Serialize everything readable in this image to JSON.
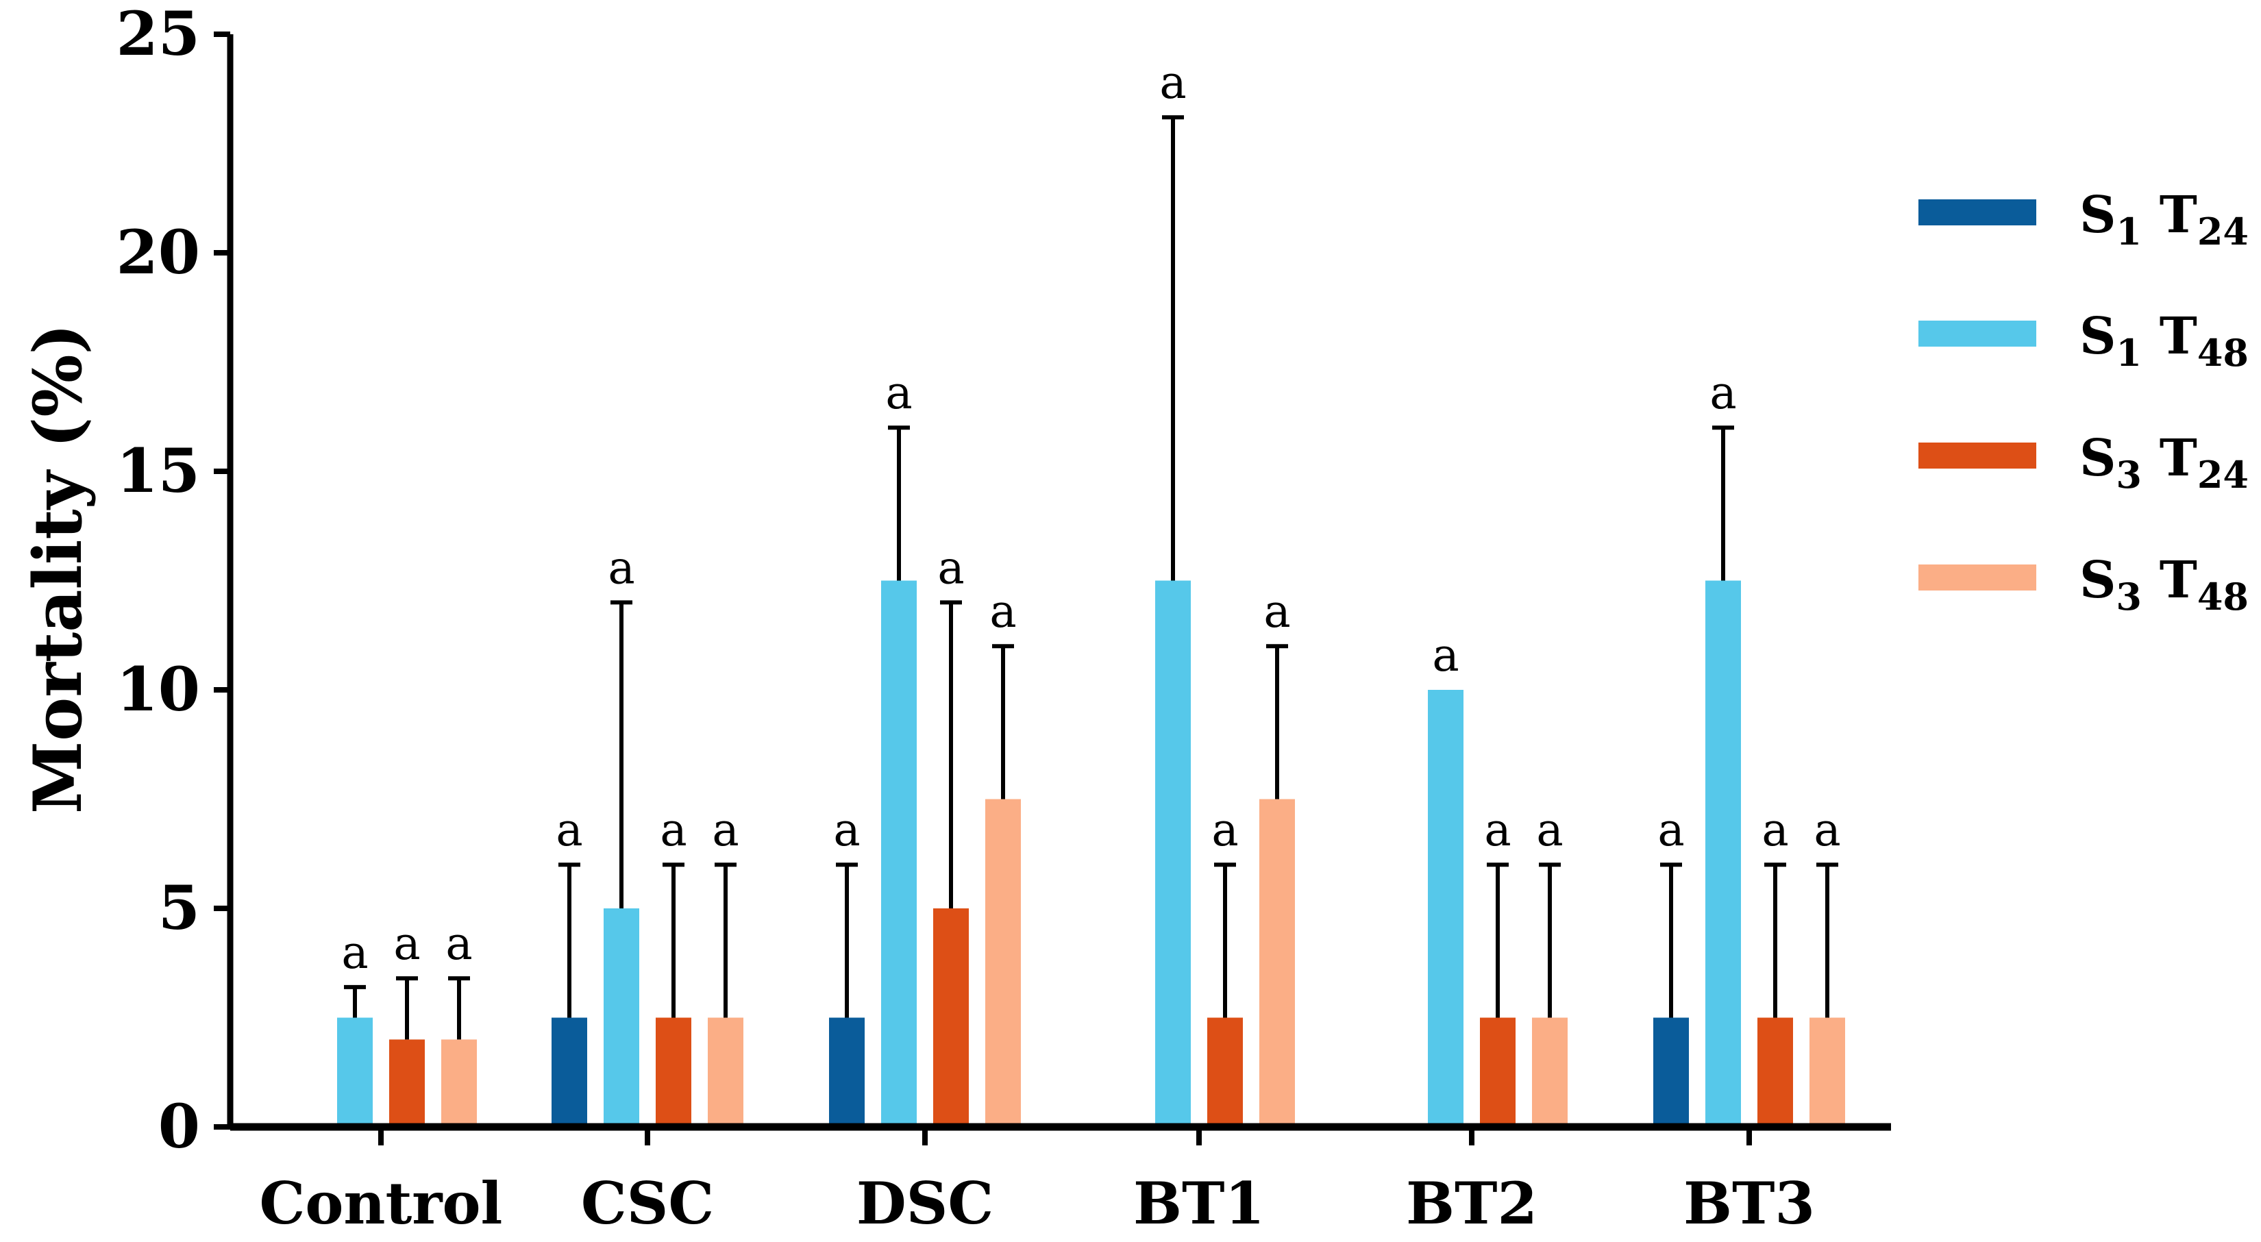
{
  "chart_data": {
    "type": "bar",
    "title": "",
    "xlabel": "",
    "ylabel": "Mortality (%)",
    "ylim": [
      0,
      25
    ],
    "yticks": [
      0,
      5,
      10,
      15,
      20,
      25
    ],
    "grid": false,
    "legend_position": "right",
    "categories": [
      "Control",
      "CSC",
      "DSC",
      "BT1",
      "BT2",
      "BT3"
    ],
    "series": [
      {
        "name": "S1 T24",
        "label_main": "S",
        "label_sub1": "1",
        "label_mid": " T",
        "label_sub2": "24",
        "color": "#0a5c9a",
        "values": [
          0,
          2.5,
          2.5,
          0,
          0,
          2.5
        ],
        "errors": [
          0,
          3.5,
          3.5,
          0,
          0,
          3.5
        ],
        "letters": [
          "",
          "a",
          "a",
          "",
          "",
          "a"
        ]
      },
      {
        "name": "S1 T48",
        "label_main": "S",
        "label_sub1": "1",
        "label_mid": " T",
        "label_sub2": "48",
        "color": "#56c8ea",
        "values": [
          2.5,
          5,
          12.5,
          12.5,
          10,
          12.5
        ],
        "errors": [
          0.7,
          7,
          3.5,
          10.6,
          0,
          3.5
        ],
        "letters": [
          "a",
          "a",
          "a",
          "a",
          "a",
          "a"
        ]
      },
      {
        "name": "S3 T24",
        "label_main": "S",
        "label_sub1": "3",
        "label_mid": " T",
        "label_sub2": "24",
        "color": "#dd4f16",
        "values": [
          2,
          2.5,
          5,
          2.5,
          2.5,
          2.5
        ],
        "errors": [
          1.4,
          3.5,
          7,
          3.5,
          3.5,
          3.5
        ],
        "letters": [
          "a",
          "a",
          "a",
          "a",
          "a",
          "a"
        ]
      },
      {
        "name": "S3 T48",
        "label_main": "S",
        "label_sub1": "3",
        "label_mid": " T",
        "label_sub2": "48",
        "color": "#fbae86",
        "values": [
          2,
          2.5,
          7.5,
          7.5,
          2.5,
          2.5
        ],
        "errors": [
          1.4,
          3.5,
          3.5,
          3.5,
          3.5,
          3.5
        ],
        "letters": [
          "a",
          "a",
          "a",
          "a",
          "a",
          "a"
        ]
      }
    ]
  }
}
